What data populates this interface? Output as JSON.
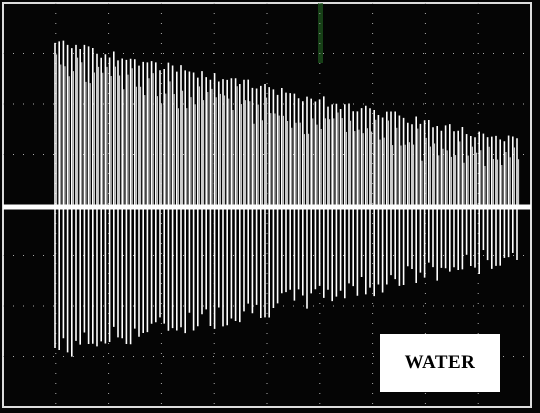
{
  "label": "WATER"
}
